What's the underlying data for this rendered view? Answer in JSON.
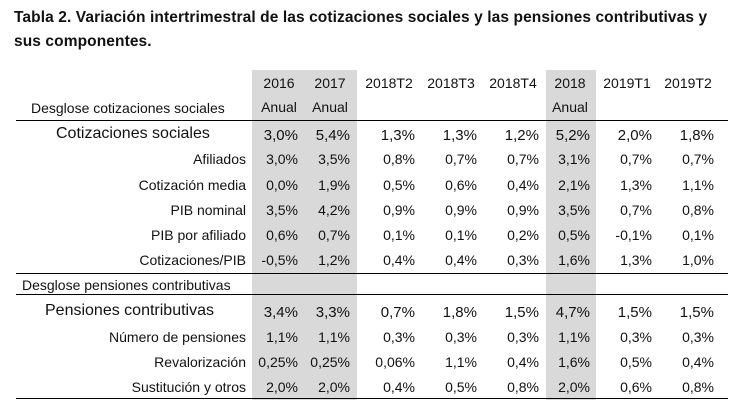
{
  "title": "Tabla 2. Variación intertrimestral de las cotizaciones sociales y las pensiones contributivas y sus componentes.",
  "header": {
    "cols": [
      {
        "line1": "2016",
        "line2": "Anual"
      },
      {
        "line1": "2017",
        "line2": "Anual"
      },
      {
        "line1": "2018T2",
        "line2": ""
      },
      {
        "line1": "2018T3",
        "line2": ""
      },
      {
        "line1": "2018T4",
        "line2": ""
      },
      {
        "line1": "2018",
        "line2": "Anual"
      },
      {
        "line1": "2019T1",
        "line2": ""
      },
      {
        "line1": "2019T2",
        "line2": ""
      }
    ],
    "section1_label": "Desglose cotizaciones sociales",
    "section2_label": "Desglose pensiones contributivas"
  },
  "section1": [
    {
      "label": "Cotizaciones sociales",
      "values": [
        "3,0%",
        "5,4%",
        "1,3%",
        "1,3%",
        "1,2%",
        "5,2%",
        "2,0%",
        "1,8%"
      ]
    },
    {
      "label": "Afiliados",
      "values": [
        "3,0%",
        "3,5%",
        "0,8%",
        "0,7%",
        "0,7%",
        "3,1%",
        "0,7%",
        "0,7%"
      ]
    },
    {
      "label": "Cotización media",
      "values": [
        "0,0%",
        "1,9%",
        "0,5%",
        "0,6%",
        "0,4%",
        "2,1%",
        "1,3%",
        "1,1%"
      ]
    },
    {
      "label": "PIB nominal",
      "values": [
        "3,5%",
        "4,2%",
        "0,9%",
        "0,9%",
        "0,9%",
        "3,5%",
        "0,7%",
        "0,8%"
      ]
    },
    {
      "label": "PIB por afiliado",
      "values": [
        "0,6%",
        "0,7%",
        "0,1%",
        "0,1%",
        "0,2%",
        "0,5%",
        "-0,1%",
        "0,1%"
      ]
    },
    {
      "label": "Cotizaciones/PIB",
      "values": [
        "-0,5%",
        "1,2%",
        "0,4%",
        "0,4%",
        "0,3%",
        "1,6%",
        "1,3%",
        "1,0%"
      ]
    }
  ],
  "section2": [
    {
      "label": "Pensiones contributivas",
      "values": [
        "3,4%",
        "3,3%",
        "0,7%",
        "1,8%",
        "1,5%",
        "4,7%",
        "1,5%",
        "1,5%"
      ]
    },
    {
      "label": "Número de pensiones",
      "values": [
        "1,1%",
        "1,1%",
        "0,3%",
        "0,3%",
        "0,3%",
        "1,1%",
        "0,3%",
        "0,3%"
      ]
    },
    {
      "label": "Revalorización",
      "values": [
        "0,25%",
        "0,25%",
        "0,06%",
        "1,1%",
        "0,4%",
        "1,6%",
        "0,5%",
        "0,4%"
      ]
    },
    {
      "label": "Sustitución y otros",
      "values": [
        "2,0%",
        "2,0%",
        "0,4%",
        "0,5%",
        "0,8%",
        "2,0%",
        "0,6%",
        "0,8%"
      ]
    }
  ]
}
